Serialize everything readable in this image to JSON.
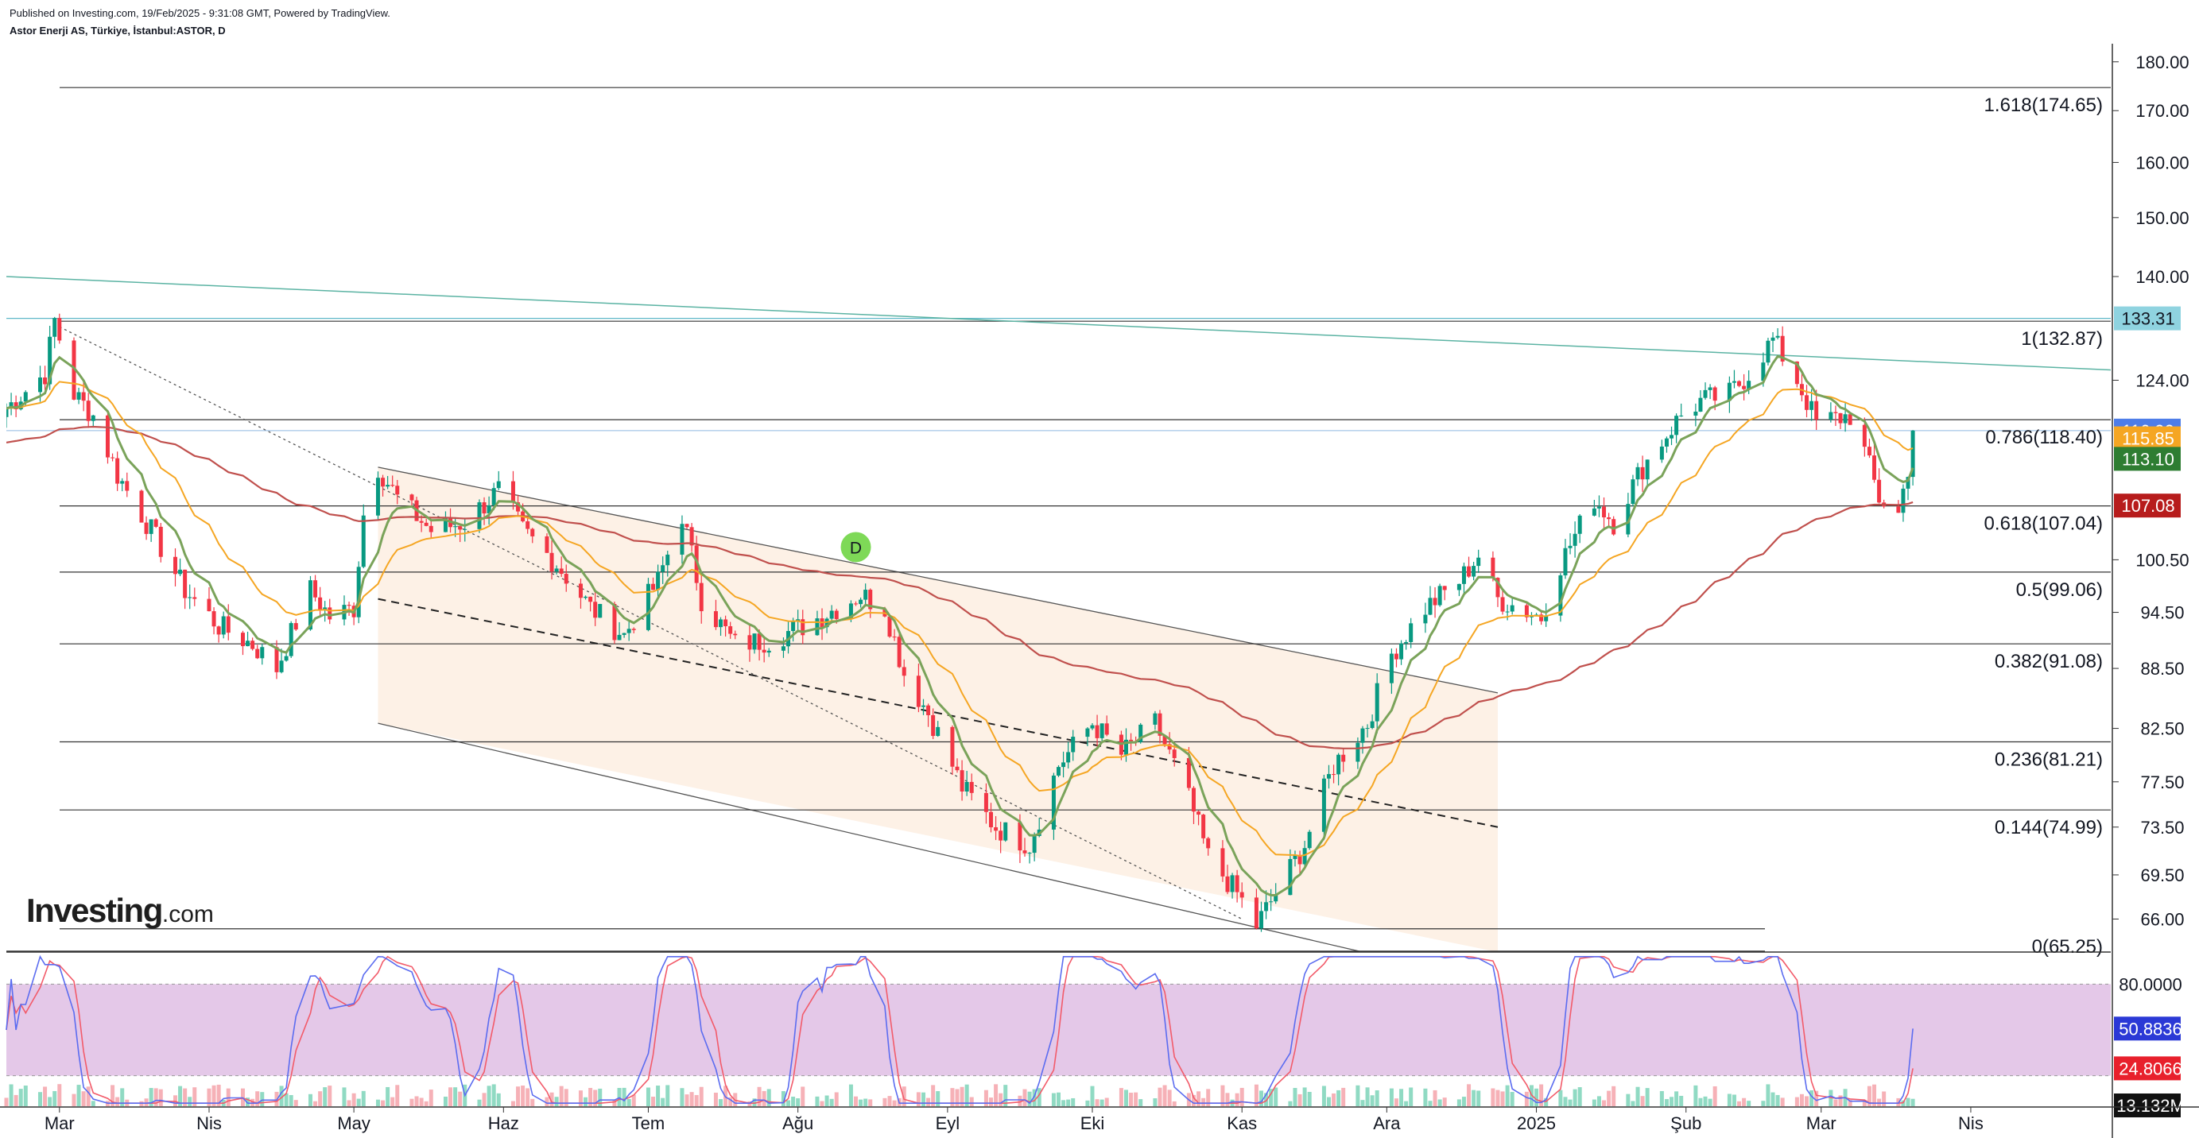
{
  "header": {
    "published": "Published on Investing.com, 19/Feb/2025 - 9:31:08 GMT, Powered by TradingView.",
    "symbol": "Astor Enerji AS, Türkiye, İstanbul:ASTOR, D"
  },
  "logo": {
    "main": "Investing",
    "suffix": ".com"
  },
  "colors": {
    "up": "#089981",
    "down": "#f23645",
    "ema_fast": "#7aa35a",
    "ema_mid": "#f5a623",
    "ema_slow": "#c0504d",
    "stoch_k": "#5b6cf0",
    "stoch_d": "#f25b6a",
    "channel_fill": "#fdf1e6",
    "stoch_band": "#e4c8e8",
    "trend_teal": "#5bb3a3"
  },
  "chart_data": {
    "type": "candlestick",
    "x_axis": {
      "labels": [
        "Mar",
        "Nis",
        "May",
        "Haz",
        "Tem",
        "Ağu",
        "Eyl",
        "Eki",
        "Kas",
        "Ara",
        "2025",
        "Şub",
        "Mar",
        "Nis"
      ]
    },
    "y_axis": {
      "scale": "log",
      "range": [
        63.5,
        183
      ],
      "ticks": [
        "180.00",
        "170.00",
        "160.00",
        "150.00",
        "140.00",
        "124.00",
        "100.50",
        "94.50",
        "88.50",
        "82.50",
        "77.50",
        "73.50",
        "69.50",
        "66.00"
      ]
    },
    "price_series": [
      {
        "d": "2024-02-19",
        "v": 120
      },
      {
        "d": "2024-02-27",
        "v": 125
      },
      {
        "d": "2024-02-29",
        "v": 133
      },
      {
        "d": "2024-03-04",
        "v": 122
      },
      {
        "d": "2024-03-08",
        "v": 119
      },
      {
        "d": "2024-03-13",
        "v": 111
      },
      {
        "d": "2024-03-20",
        "v": 104
      },
      {
        "d": "2024-03-27",
        "v": 97
      },
      {
        "d": "2024-04-03",
        "v": 93
      },
      {
        "d": "2024-04-10",
        "v": 91
      },
      {
        "d": "2024-04-15",
        "v": 88.5
      },
      {
        "d": "2024-04-22",
        "v": 97
      },
      {
        "d": "2024-04-26",
        "v": 94
      },
      {
        "d": "2024-05-01",
        "v": 95
      },
      {
        "d": "2024-05-03",
        "v": 106
      },
      {
        "d": "2024-05-06",
        "v": 112
      },
      {
        "d": "2024-05-10",
        "v": 108
      },
      {
        "d": "2024-05-17",
        "v": 104
      },
      {
        "d": "2024-05-24",
        "v": 105
      },
      {
        "d": "2024-05-31",
        "v": 109
      },
      {
        "d": "2024-06-05",
        "v": 104
      },
      {
        "d": "2024-06-12",
        "v": 100
      },
      {
        "d": "2024-06-19",
        "v": 95
      },
      {
        "d": "2024-06-26",
        "v": 92
      },
      {
        "d": "2024-07-03",
        "v": 98
      },
      {
        "d": "2024-07-08",
        "v": 106
      },
      {
        "d": "2024-07-12",
        "v": 96
      },
      {
        "d": "2024-07-19",
        "v": 91
      },
      {
        "d": "2024-07-26",
        "v": 91.5
      },
      {
        "d": "2024-08-02",
        "v": 93
      },
      {
        "d": "2024-08-09",
        "v": 95
      },
      {
        "d": "2024-08-14",
        "v": 96.5
      },
      {
        "d": "2024-08-19",
        "v": 95
      },
      {
        "d": "2024-08-23",
        "v": 88
      },
      {
        "d": "2024-08-28",
        "v": 84
      },
      {
        "d": "2024-09-04",
        "v": 77
      },
      {
        "d": "2024-09-11",
        "v": 73.5
      },
      {
        "d": "2024-09-18",
        "v": 72
      },
      {
        "d": "2024-09-24",
        "v": 79
      },
      {
        "d": "2024-10-01",
        "v": 83
      },
      {
        "d": "2024-10-07",
        "v": 80
      },
      {
        "d": "2024-10-14",
        "v": 83
      },
      {
        "d": "2024-10-21",
        "v": 76
      },
      {
        "d": "2024-10-25",
        "v": 71
      },
      {
        "d": "2024-10-31",
        "v": 68
      },
      {
        "d": "2024-11-04",
        "v": 65.5
      },
      {
        "d": "2024-11-08",
        "v": 68
      },
      {
        "d": "2024-11-14",
        "v": 72
      },
      {
        "d": "2024-11-20",
        "v": 79
      },
      {
        "d": "2024-11-27",
        "v": 83
      },
      {
        "d": "2024-12-02",
        "v": 90
      },
      {
        "d": "2024-12-09",
        "v": 95
      },
      {
        "d": "2024-12-16",
        "v": 98
      },
      {
        "d": "2024-12-20",
        "v": 101
      },
      {
        "d": "2024-12-24",
        "v": 96
      },
      {
        "d": "2025-01-02",
        "v": 94
      },
      {
        "d": "2025-01-06",
        "v": 100
      },
      {
        "d": "2025-01-13",
        "v": 108
      },
      {
        "d": "2025-01-17",
        "v": 105
      },
      {
        "d": "2025-01-23",
        "v": 112
      },
      {
        "d": "2025-01-31",
        "v": 119
      },
      {
        "d": "2025-02-04",
        "v": 121
      },
      {
        "d": "2025-02-10",
        "v": 122
      },
      {
        "d": "2025-02-14",
        "v": 125
      },
      {
        "d": "2025-02-19",
        "v": 130
      },
      {
        "d": "2025-02-24",
        "v": 124
      },
      {
        "d": "2025-02-28",
        "v": 118
      },
      {
        "d": "2025-03-07",
        "v": 119
      },
      {
        "d": "2025-03-10",
        "v": 114
      },
      {
        "d": "2025-03-13",
        "v": 108
      },
      {
        "d": "2025-03-17",
        "v": 106
      },
      {
        "d": "2025-03-19",
        "v": 112
      },
      {
        "d": "2025-03-20",
        "v": 116.9
      }
    ],
    "moving_averages": [
      "ema_fast",
      "ema_mid",
      "ema_slow"
    ],
    "fibonacci_levels": [
      {
        "label": "1.618(174.65)",
        "value": 174.65
      },
      {
        "label": "1(132.87)",
        "value": 132.87
      },
      {
        "label": "0.786(118.40)",
        "value": 118.4
      },
      {
        "label": "0.618(107.04)",
        "value": 107.04
      },
      {
        "label": "0.5(99.06)",
        "value": 99.06
      },
      {
        "label": "0.382(91.08)",
        "value": 91.08
      },
      {
        "label": "0.236(81.21)",
        "value": 81.21
      },
      {
        "label": "0.144(74.99)",
        "value": 74.99
      },
      {
        "label": "0(65.25)",
        "value": 65.25
      }
    ],
    "price_badges": [
      {
        "text": "133.31",
        "value": 133.31,
        "bg": "#8fd3e0",
        "fg": "#131722"
      },
      {
        "text": "116.90",
        "value": 116.9,
        "bg": "#4e7de8",
        "fg": "#ffffff"
      },
      {
        "text": "115.85",
        "value": 115.85,
        "bg": "#f5a623",
        "fg": "#ffffff"
      },
      {
        "text": "113.10",
        "value": 113.1,
        "bg": "#2e7d32",
        "fg": "#ffffff"
      },
      {
        "text": "107.08",
        "value": 107.08,
        "bg": "#b71c1c",
        "fg": "#ffffff"
      }
    ],
    "marker": {
      "label": "D",
      "date": "2024-08-13",
      "value": 102
    },
    "channel": {
      "upper": [
        {
          "d": "2024-05-06",
          "v": 112
        },
        {
          "d": "2024-12-24",
          "v": 86
        }
      ],
      "lower": [
        {
          "d": "2024-05-06",
          "v": 83
        },
        {
          "d": "2024-11-26",
          "v": 63.5
        }
      ]
    },
    "trendlines": {
      "teal_descending": [
        {
          "d": "2024-02-19",
          "v": 140
        },
        {
          "d": "2025-04-30",
          "v": 125.5
        }
      ],
      "dotted": [
        {
          "d": "2024-03-01",
          "v": 132
        },
        {
          "d": "2024-11-01",
          "v": 66
        }
      ],
      "dashed": [
        {
          "d": "2024-05-06",
          "v": 96
        },
        {
          "d": "2024-12-24",
          "v": 73.5
        }
      ]
    },
    "stochastic": {
      "band": [
        20,
        80
      ],
      "k_last": 50.8836,
      "d_last": 24.8066,
      "labels": [
        "80.0000",
        "50.8836",
        "24.8066"
      ]
    },
    "volume": {
      "last_label": "13.132M"
    }
  }
}
